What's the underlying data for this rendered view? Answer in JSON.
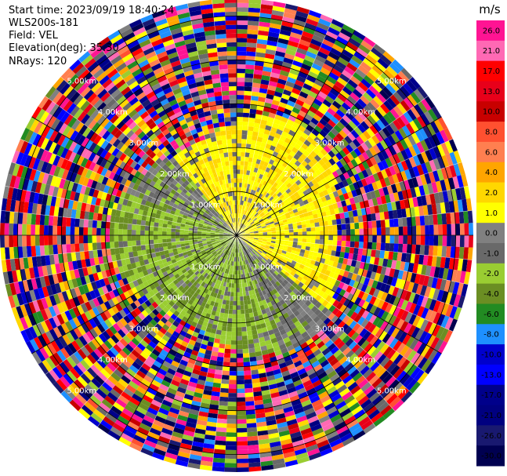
{
  "header": {
    "start_time": "Start time: 2023/09/19 18:40:24",
    "instrument": "WLS200s-181",
    "field": "Field: VEL",
    "elevation": "Elevation(deg): 35.30",
    "nrays": "NRays: 120"
  },
  "colorbar": {
    "unit": "m/s",
    "ticks": [
      "26.0",
      "21.0",
      "17.0",
      "13.0",
      "10.0",
      "8.0",
      "6.0",
      "4.0",
      "2.0",
      "1.0",
      "0.0",
      "-1.0",
      "-2.0",
      "-4.0",
      "-6.0",
      "-8.0",
      "-10.0",
      "-13.0",
      "-17.0",
      "-21.0",
      "-26.0",
      "-30.0"
    ],
    "colors": [
      "#ff1493",
      "#ff69b4",
      "#ff0000",
      "#e8001a",
      "#c80000",
      "#ff5030",
      "#ff7f50",
      "#ffa500",
      "#ffd700",
      "#ffff00",
      "#808080",
      "#696969",
      "#9acd32",
      "#6b8e23",
      "#228b22",
      "#1e90ff",
      "#0000cd",
      "#0000ff",
      "#00008b",
      "#000080",
      "#191970",
      "#000050"
    ]
  },
  "chart_data": {
    "type": "heatmap",
    "subtype": "polar PPI scan",
    "field": "VEL",
    "unit": "m/s",
    "nrays": 120,
    "elevation_deg": 35.3,
    "range_rings_km": [
      1.0,
      2.0,
      3.0,
      4.0,
      5.0
    ],
    "ring_labels": [
      "1.00km",
      "2.00km",
      "3.00km",
      "4.00km",
      "5.00km"
    ],
    "max_range_km": 5.4,
    "velocity_structure": {
      "inner_positive_sector": "north-east, yellow 1.0-2.0 m/s, out to ~2.5 km",
      "inner_negative_sector": "south-west, olive/green -1.0 to -4.0 m/s, out to ~2.5 km",
      "near_zero_band": "grey 0 to -1 m/s along the divide",
      "outer_region": "noisy, all colors (beyond ~2.5-3 km)"
    }
  }
}
